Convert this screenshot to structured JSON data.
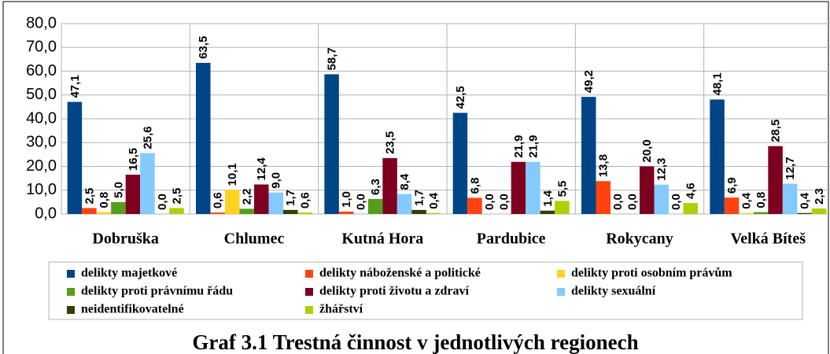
{
  "chart_data": {
    "type": "bar",
    "title": "Graf 3.1 Trestná činnost v jednotlivých regionech",
    "categories": [
      "Dobruška",
      "Chlumec",
      "Kutná Hora",
      "Pardubice",
      "Rokycany",
      "Velká Bíteš"
    ],
    "series": [
      {
        "name": "delikty majetkové",
        "color": "#004586",
        "values": [
          47.1,
          63.5,
          58.7,
          42.5,
          49.2,
          48.1
        ],
        "value_labels": [
          "47,1",
          "63,5",
          "58,7",
          "42,5",
          "49,2",
          "48,1"
        ]
      },
      {
        "name": "delikty náboženské a politické",
        "color": "#ff420e",
        "values": [
          2.5,
          0.6,
          1.0,
          6.8,
          13.8,
          6.9
        ],
        "value_labels": [
          "2,5",
          "0,6",
          "1,0",
          "6,8",
          "13,8",
          "6,9"
        ]
      },
      {
        "name": "delikty proti osobním právům",
        "color": "#ffd320",
        "values": [
          0.8,
          10.1,
          0.0,
          0.0,
          0.0,
          0.4
        ],
        "value_labels": [
          "0,8",
          "10,1",
          "0,0",
          "0,0",
          "0,0",
          "0,4"
        ]
      },
      {
        "name": "delikty proti právnímu řádu",
        "color": "#579d1c",
        "values": [
          5.0,
          2.2,
          6.3,
          0.0,
          0.0,
          0.8
        ],
        "value_labels": [
          "5,0",
          "2,2",
          "6,3",
          "0,0",
          "0,0",
          "0,8"
        ]
      },
      {
        "name": "delikty proti životu a zdraví",
        "color": "#7e0021",
        "values": [
          16.5,
          12.4,
          23.5,
          21.9,
          20.0,
          28.5
        ],
        "value_labels": [
          "16,5",
          "12,4",
          "23,5",
          "21,9",
          "20,0",
          "28,5"
        ]
      },
      {
        "name": "delikty sexuální",
        "color": "#83caff",
        "values": [
          25.6,
          9.0,
          8.4,
          21.9,
          12.3,
          12.7
        ],
        "value_labels": [
          "25,6",
          "9,0",
          "8,4",
          "21,9",
          "12,3",
          "12,7"
        ]
      },
      {
        "name": "neidentifikovatelné",
        "color": "#314004",
        "values": [
          0.0,
          1.7,
          1.7,
          1.4,
          0.0,
          0.4
        ],
        "value_labels": [
          "0,0",
          "1,7",
          "1,7",
          "1,4",
          "0,0",
          "0,4"
        ]
      },
      {
        "name": "žhářství",
        "color": "#aecf00",
        "values": [
          2.5,
          0.6,
          0.4,
          5.5,
          4.6,
          2.3
        ],
        "value_labels": [
          "2,5",
          "0,6",
          "0,4",
          "5,5",
          "4,6",
          "2,3"
        ]
      }
    ],
    "ylim": [
      0,
      80
    ],
    "yticks": [
      {
        "value": 0,
        "label": "0,0"
      },
      {
        "value": 10,
        "label": "10,0"
      },
      {
        "value": 20,
        "label": "20,0"
      },
      {
        "value": 30,
        "label": "30,0"
      },
      {
        "value": 40,
        "label": "40,0"
      },
      {
        "value": 50,
        "label": "50,0"
      },
      {
        "value": 60,
        "label": "60,0"
      },
      {
        "value": 70,
        "label": "70,0"
      },
      {
        "value": 80,
        "label": "80,0"
      }
    ],
    "grid": true,
    "legend": "bottom"
  }
}
